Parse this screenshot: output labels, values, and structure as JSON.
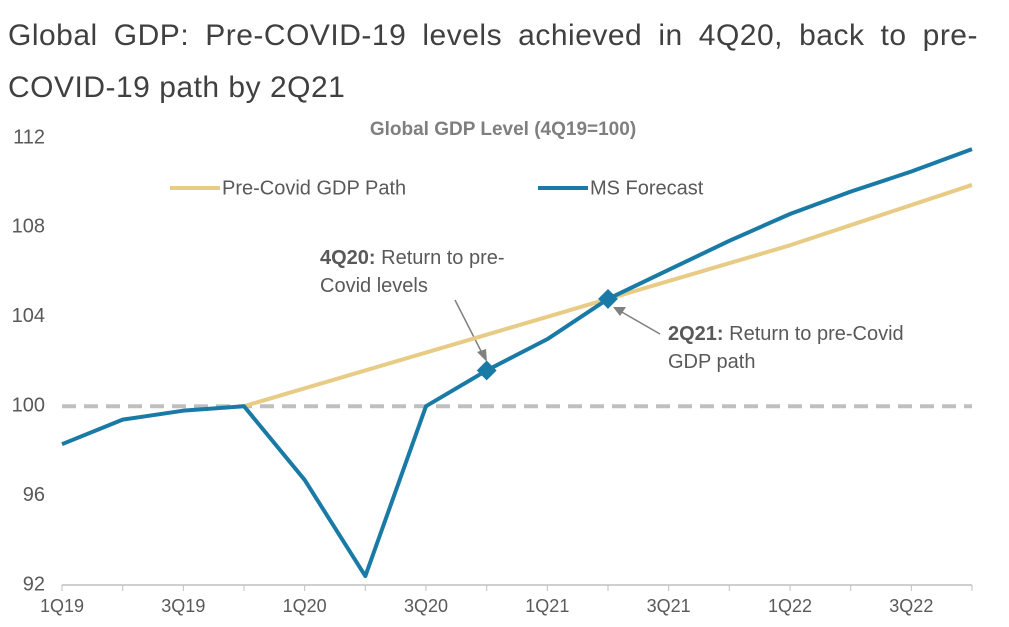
{
  "page_title": "Global GDP: Pre-COVID-19 levels achieved in 4Q20, back to pre-COVID-19 path by 2Q21",
  "chart_data": {
    "type": "line",
    "title": "Global GDP Level (4Q19=100)",
    "categories": [
      "1Q19",
      null,
      "3Q19",
      null,
      "1Q20",
      null,
      "3Q20",
      null,
      "1Q21",
      null,
      "3Q21",
      null,
      "1Q22",
      null,
      "3Q22",
      null
    ],
    "series": [
      {
        "name": "Pre-Covid GDP Path",
        "color": "#e8cb84",
        "values": [
          null,
          null,
          null,
          100,
          100.8,
          101.6,
          102.4,
          103.2,
          104.0,
          104.8,
          105.6,
          106.4,
          107.2,
          108.1,
          109.0,
          109.9
        ]
      },
      {
        "name": "MS Forecast",
        "color": "#1a7aa6",
        "values": [
          98.3,
          99.4,
          99.8,
          100,
          96.7,
          92.4,
          100,
          101.6,
          103.0,
          104.8,
          106.1,
          107.4,
          108.6,
          109.6,
          110.5,
          111.5
        ]
      }
    ],
    "reference_line": {
      "value": 100,
      "color": "#bfbfbf"
    },
    "annotations": [
      {
        "bold": "4Q20:",
        "text": "Return to pre-Covid levels",
        "point": 7
      },
      {
        "bold": "2Q21:",
        "text": "Return to pre-Covid GDP path",
        "point": 9
      }
    ],
    "ylim": [
      92,
      112
    ],
    "yticks": [
      92,
      96,
      100,
      104,
      108,
      112
    ],
    "grid": false
  }
}
